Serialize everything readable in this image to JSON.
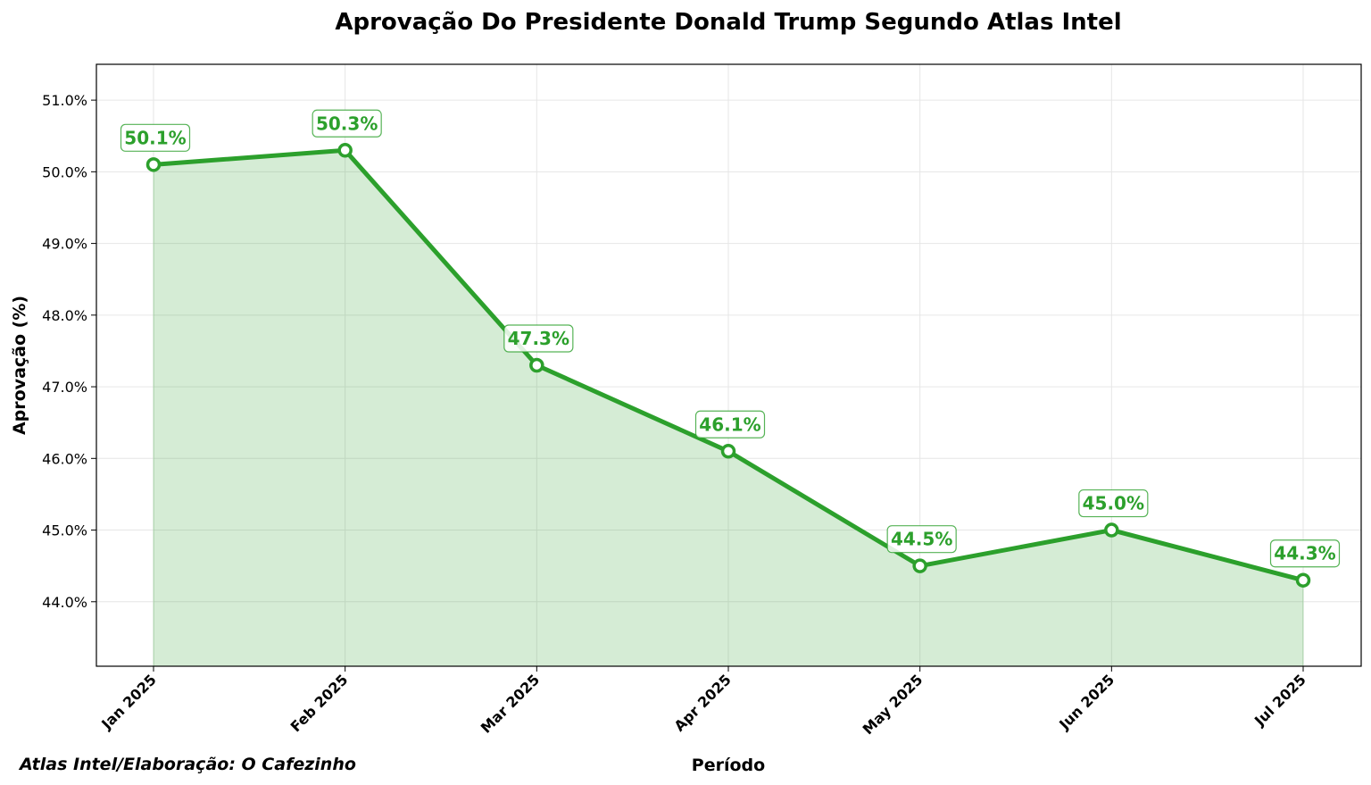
{
  "chart_data": {
    "type": "area",
    "title": "Aprovação Do Presidente Donald Trump Segundo Atlas Intel",
    "xlabel": "Período",
    "ylabel": "Aprovação (%)",
    "categories": [
      "Jan 2025",
      "Feb 2025",
      "Mar 2025",
      "Apr 2025",
      "May 2025",
      "Jun 2025",
      "Jul 2025"
    ],
    "values": [
      50.1,
      50.3,
      47.3,
      46.1,
      44.5,
      45.0,
      44.3
    ],
    "data_labels": [
      "50.1%",
      "50.3%",
      "47.3%",
      "46.1%",
      "44.5%",
      "45.0%",
      "44.3%"
    ],
    "yticks": [
      44,
      45,
      46,
      47,
      48,
      49,
      50,
      51
    ],
    "ytick_labels": [
      "44.0%",
      "45.0%",
      "46.0%",
      "47.0%",
      "48.0%",
      "49.0%",
      "50.0%",
      "51.0%"
    ],
    "ylim": [
      43.1,
      51.5
    ],
    "grid": true,
    "colors": {
      "line": "#2ca02c",
      "fill": "#2ca02c",
      "marker_face": "#ffffff"
    }
  },
  "source_note": "Atlas Intel/Elaboração: O Cafezinho"
}
